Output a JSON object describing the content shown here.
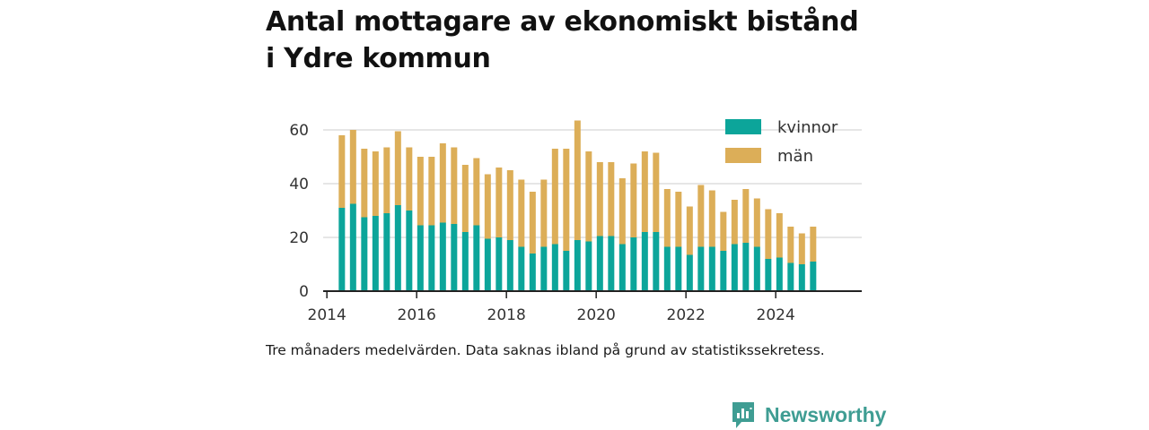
{
  "title": {
    "line1": "Antal mottagare av ekonomiskt bistånd",
    "line2": "i Ydre kommun"
  },
  "note": "Tre månaders medelvärden. Data saknas ibland på grund av statistikssekretess.",
  "brand": {
    "name": "Newsworthy",
    "icon": "newsworthy-logo-icon"
  },
  "colors": {
    "kvinnor": "#0ca59a",
    "man": "#dcae58",
    "axis": "#222222",
    "grid": "#dddddd",
    "text": "#333333"
  },
  "chart_data": {
    "type": "bar",
    "stacked": true,
    "xlim": [
      "2013-12-01",
      "2025-12-01"
    ],
    "ylim": [
      0,
      65
    ],
    "xticks": [
      "2014",
      "2016",
      "2018",
      "2020",
      "2022",
      "2024"
    ],
    "yticks": [
      0,
      20,
      40,
      60
    ],
    "grid": true,
    "legend_position": "top-right",
    "x": [
      "2014-05",
      "2014-08",
      "2014-11",
      "2015-02",
      "2015-05",
      "2015-08",
      "2015-11",
      "2016-02",
      "2016-05",
      "2016-08",
      "2016-11",
      "2017-02",
      "2017-05",
      "2017-08",
      "2017-11",
      "2018-02",
      "2018-05",
      "2018-08",
      "2018-11",
      "2019-02",
      "2019-05",
      "2019-08",
      "2019-11",
      "2020-02",
      "2020-05",
      "2020-08",
      "2020-11",
      "2021-02",
      "2021-05",
      "2021-08",
      "2021-11",
      "2022-02",
      "2022-05",
      "2022-08",
      "2022-11",
      "2023-02",
      "2023-05",
      "2023-08",
      "2023-11",
      "2024-02",
      "2024-05",
      "2024-08",
      "2024-11"
    ],
    "series": [
      {
        "name": "kvinnor",
        "values": [
          31,
          32.5,
          27.5,
          28,
          29,
          32,
          30,
          24.5,
          24.5,
          25.5,
          25,
          22,
          24.5,
          19.5,
          20,
          19,
          16.5,
          14,
          16.5,
          17.5,
          15,
          19,
          18.5,
          20.5,
          20.5,
          17.5,
          20,
          22,
          22,
          16.5,
          16.5,
          13.5,
          16.5,
          16.5,
          15,
          17.5,
          18,
          16.5,
          12,
          12.5,
          10.5,
          10,
          11
        ]
      },
      {
        "name": "män",
        "values": [
          27,
          27.5,
          25.5,
          24,
          24.5,
          27.5,
          23.5,
          25.5,
          25.5,
          29.5,
          28.5,
          25,
          25,
          24,
          26,
          26,
          25,
          23,
          25,
          35.5,
          38,
          44.5,
          33.5,
          27.5,
          27.5,
          24.5,
          27.5,
          30,
          29.5,
          21.5,
          20.5,
          18,
          23,
          21,
          14.5,
          16.5,
          20,
          18,
          18.5,
          16.5,
          13.5,
          11.5,
          13
        ]
      }
    ]
  }
}
